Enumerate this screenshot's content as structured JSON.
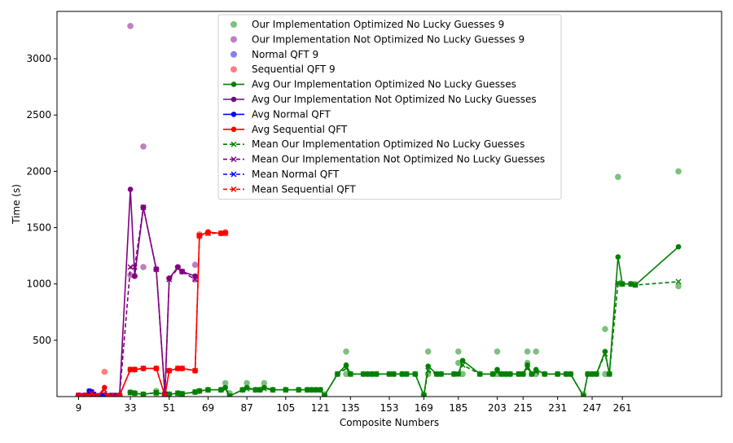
{
  "chart_data": {
    "type": "line",
    "title": "",
    "xlabel": "Composite Numbers",
    "ylabel": "Time (s)",
    "xlim": [
      -1,
      307
    ],
    "ylim": [
      0,
      3420
    ],
    "grid": false,
    "legend_position": "top-center",
    "x_ticks": [
      9,
      33,
      51,
      69,
      87,
      105,
      121,
      135,
      153,
      169,
      185,
      203,
      215,
      231,
      247,
      261
    ],
    "y_ticks": [
      500,
      1000,
      1500,
      2000,
      2500,
      3000
    ],
    "scatter_series": [
      {
        "name": "Our Implementation Optimized No Lucky Guesses 9",
        "color": "#008000",
        "points": [
          [
            33,
            40
          ],
          [
            35,
            30
          ],
          [
            39,
            20
          ],
          [
            45,
            25
          ],
          [
            45,
            50
          ],
          [
            49,
            30
          ],
          [
            51,
            20
          ],
          [
            55,
            30
          ],
          [
            57,
            25
          ],
          [
            63,
            40
          ],
          [
            65,
            50
          ],
          [
            69,
            60
          ],
          [
            75,
            60
          ],
          [
            77,
            120
          ],
          [
            79,
            30
          ],
          [
            85,
            60
          ],
          [
            87,
            120
          ],
          [
            91,
            60
          ],
          [
            93,
            60
          ],
          [
            95,
            120
          ],
          [
            99,
            60
          ],
          [
            105,
            60
          ],
          [
            111,
            60
          ],
          [
            115,
            60
          ],
          [
            117,
            60
          ],
          [
            119,
            60
          ],
          [
            121,
            60
          ],
          [
            123,
            20
          ],
          [
            129,
            200
          ],
          [
            133,
            400
          ],
          [
            133,
            200
          ],
          [
            135,
            200
          ],
          [
            141,
            200
          ],
          [
            143,
            200
          ],
          [
            145,
            200
          ],
          [
            147,
            200
          ],
          [
            153,
            200
          ],
          [
            155,
            200
          ],
          [
            159,
            200
          ],
          [
            161,
            200
          ],
          [
            165,
            200
          ],
          [
            169,
            20
          ],
          [
            171,
            400
          ],
          [
            171,
            200
          ],
          [
            175,
            200
          ],
          [
            177,
            200
          ],
          [
            183,
            200
          ],
          [
            185,
            400
          ],
          [
            185,
            300
          ],
          [
            187,
            200
          ],
          [
            195,
            200
          ],
          [
            201,
            200
          ],
          [
            203,
            400
          ],
          [
            203,
            200
          ],
          [
            205,
            200
          ],
          [
            207,
            200
          ],
          [
            209,
            200
          ],
          [
            213,
            200
          ],
          [
            215,
            200
          ],
          [
            217,
            400
          ],
          [
            217,
            300
          ],
          [
            219,
            200
          ],
          [
            221,
            400
          ],
          [
            221,
            200
          ],
          [
            225,
            200
          ],
          [
            231,
            200
          ],
          [
            235,
            200
          ],
          [
            237,
            200
          ],
          [
            243,
            20
          ],
          [
            245,
            200
          ],
          [
            247,
            200
          ],
          [
            249,
            200
          ],
          [
            253,
            600
          ],
          [
            253,
            200
          ],
          [
            255,
            200
          ],
          [
            259,
            1950
          ],
          [
            259,
            1000
          ],
          [
            261,
            1000
          ],
          [
            265,
            1000
          ],
          [
            267,
            1000
          ],
          [
            287,
            2000
          ],
          [
            287,
            980
          ]
        ]
      },
      {
        "name": "Our Implementation Not Optimized No Lucky Guesses 9",
        "color": "#800080",
        "points": [
          [
            9,
            10
          ],
          [
            10,
            5
          ],
          [
            12,
            10
          ],
          [
            14,
            5
          ],
          [
            15,
            20
          ],
          [
            16,
            10
          ],
          [
            18,
            5
          ],
          [
            20,
            5
          ],
          [
            21,
            10
          ],
          [
            22,
            5
          ],
          [
            24,
            10
          ],
          [
            25,
            5
          ],
          [
            26,
            10
          ],
          [
            27,
            5
          ],
          [
            28,
            10
          ],
          [
            33,
            3290
          ],
          [
            33,
            1080
          ],
          [
            35,
            1070
          ],
          [
            39,
            2220
          ],
          [
            39,
            1150
          ],
          [
            39,
            1680
          ],
          [
            45,
            1130
          ],
          [
            49,
            20
          ],
          [
            51,
            1050
          ],
          [
            55,
            1150
          ],
          [
            57,
            1110
          ],
          [
            63,
            1170
          ],
          [
            63,
            1040
          ]
        ]
      },
      {
        "name": "Normal QFT 9",
        "color": "#0000ff",
        "points": [
          [
            9,
            10
          ],
          [
            10,
            5
          ],
          [
            12,
            10
          ],
          [
            14,
            5
          ],
          [
            15,
            40
          ],
          [
            16,
            10
          ],
          [
            18,
            5
          ],
          [
            20,
            5
          ],
          [
            21,
            10
          ],
          [
            22,
            5
          ]
        ]
      },
      {
        "name": "Sequential QFT 9",
        "color": "#ff0000",
        "points": [
          [
            9,
            10
          ],
          [
            10,
            5
          ],
          [
            12,
            10
          ],
          [
            14,
            5
          ],
          [
            15,
            40
          ],
          [
            16,
            10
          ],
          [
            18,
            5
          ],
          [
            21,
            220
          ],
          [
            22,
            5
          ],
          [
            24,
            5
          ],
          [
            28,
            10
          ],
          [
            33,
            240
          ],
          [
            35,
            240
          ],
          [
            39,
            250
          ],
          [
            45,
            250
          ],
          [
            49,
            10
          ],
          [
            51,
            230
          ],
          [
            55,
            250
          ],
          [
            57,
            250
          ],
          [
            63,
            230
          ],
          [
            65,
            1440
          ],
          [
            65,
            1420
          ],
          [
            69,
            1450
          ],
          [
            69,
            1460
          ],
          [
            75,
            1450
          ],
          [
            77,
            1450
          ],
          [
            77,
            1460
          ]
        ]
      }
    ],
    "series": [
      {
        "name": "Avg Our Implementation Optimized No Lucky Guesses",
        "color": "#008000",
        "style": "line-dot",
        "x": [
          33,
          35,
          39,
          45,
          49,
          51,
          55,
          57,
          63,
          65,
          69,
          75,
          77,
          79,
          85,
          87,
          91,
          93,
          95,
          99,
          105,
          111,
          115,
          117,
          119,
          121,
          123,
          129,
          133,
          135,
          141,
          143,
          145,
          147,
          153,
          155,
          159,
          161,
          165,
          169,
          171,
          175,
          177,
          183,
          185,
          187,
          195,
          201,
          203,
          205,
          207,
          209,
          213,
          215,
          217,
          219,
          221,
          225,
          231,
          235,
          237,
          243,
          245,
          247,
          249,
          253,
          255,
          259,
          261,
          265,
          267,
          287
        ],
        "y": [
          35,
          30,
          20,
          35,
          20,
          20,
          30,
          25,
          40,
          50,
          60,
          60,
          80,
          5,
          60,
          80,
          60,
          60,
          80,
          60,
          60,
          60,
          60,
          60,
          60,
          60,
          10,
          200,
          280,
          200,
          200,
          200,
          200,
          200,
          200,
          200,
          200,
          200,
          200,
          10,
          270,
          200,
          200,
          200,
          200,
          320,
          200,
          200,
          240,
          200,
          200,
          200,
          200,
          200,
          280,
          200,
          240,
          200,
          200,
          200,
          200,
          5,
          200,
          200,
          200,
          400,
          200,
          1240,
          1000,
          1000,
          990,
          1330
        ]
      },
      {
        "name": "Avg Our Implementation Not Optimized No Lucky Guesses",
        "color": "#800080",
        "style": "line-dot",
        "x": [
          9,
          10,
          12,
          14,
          15,
          16,
          18,
          20,
          21,
          22,
          24,
          25,
          26,
          27,
          28,
          33,
          35,
          39,
          45,
          49,
          51,
          55,
          57,
          63
        ],
        "y": [
          10,
          5,
          10,
          5,
          20,
          10,
          5,
          5,
          10,
          5,
          10,
          5,
          10,
          5,
          10,
          1840,
          1070,
          1680,
          1130,
          20,
          1050,
          1150,
          1110,
          1070
        ]
      },
      {
        "name": "Avg Normal QFT",
        "color": "#0000ff",
        "style": "line-dot",
        "x": [
          9,
          10,
          12,
          14,
          15,
          16,
          18,
          20,
          21,
          22
        ],
        "y": [
          10,
          5,
          10,
          50,
          40,
          20,
          5,
          5,
          10,
          5
        ]
      },
      {
        "name": "Avg Sequential QFT",
        "color": "#ff0000",
        "style": "line-dot",
        "x": [
          9,
          10,
          12,
          14,
          15,
          16,
          18,
          21,
          22,
          24,
          28,
          33,
          35,
          39,
          45,
          49,
          51,
          55,
          57,
          63,
          65,
          69,
          75,
          77
        ],
        "y": [
          10,
          5,
          10,
          5,
          30,
          10,
          5,
          80,
          5,
          5,
          10,
          240,
          240,
          250,
          250,
          10,
          230,
          250,
          250,
          230,
          1430,
          1460,
          1450,
          1455
        ]
      },
      {
        "name": "Mean Our Implementation Optimized No Lucky Guesses",
        "color": "#008000",
        "style": "dash-x",
        "x": [
          33,
          35,
          39,
          45,
          49,
          51,
          55,
          57,
          63,
          65,
          69,
          75,
          77,
          79,
          85,
          87,
          91,
          93,
          95,
          99,
          105,
          111,
          115,
          117,
          119,
          121,
          123,
          129,
          133,
          135,
          141,
          143,
          145,
          147,
          153,
          155,
          159,
          161,
          165,
          169,
          171,
          175,
          177,
          183,
          185,
          187,
          195,
          201,
          203,
          205,
          207,
          209,
          213,
          215,
          217,
          219,
          221,
          225,
          231,
          235,
          237,
          243,
          245,
          247,
          249,
          253,
          255,
          259,
          261,
          265,
          267,
          287
        ],
        "y": [
          35,
          30,
          20,
          35,
          20,
          20,
          30,
          25,
          40,
          50,
          60,
          60,
          70,
          5,
          60,
          70,
          60,
          60,
          70,
          60,
          60,
          60,
          60,
          60,
          60,
          60,
          10,
          200,
          250,
          200,
          200,
          200,
          200,
          200,
          200,
          200,
          200,
          200,
          200,
          10,
          230,
          200,
          200,
          200,
          200,
          280,
          200,
          200,
          220,
          200,
          200,
          200,
          200,
          200,
          250,
          200,
          220,
          200,
          200,
          200,
          200,
          5,
          200,
          200,
          200,
          380,
          200,
          1010,
          1000,
          1000,
          990,
          1020
        ]
      },
      {
        "name": "Mean Our Implementation Not Optimized No Lucky Guesses",
        "color": "#800080",
        "style": "dash-x",
        "x": [
          9,
          10,
          12,
          14,
          15,
          16,
          18,
          20,
          21,
          22,
          24,
          25,
          26,
          27,
          28,
          33,
          35,
          39,
          45,
          49,
          51,
          55,
          57,
          63
        ],
        "y": [
          10,
          5,
          10,
          5,
          20,
          10,
          5,
          5,
          10,
          5,
          10,
          5,
          10,
          5,
          10,
          1150,
          1150,
          1680,
          1130,
          20,
          1040,
          1140,
          1110,
          1040
        ]
      },
      {
        "name": "Mean Normal QFT",
        "color": "#0000ff",
        "style": "dash-x",
        "x": [
          9,
          10,
          12,
          14,
          15,
          16,
          18,
          20,
          21,
          22
        ],
        "y": [
          10,
          5,
          10,
          45,
          40,
          20,
          5,
          5,
          10,
          5
        ]
      },
      {
        "name": "Mean Sequential QFT",
        "color": "#ff0000",
        "style": "dash-x",
        "x": [
          9,
          10,
          12,
          14,
          15,
          16,
          18,
          21,
          22,
          24,
          28,
          33,
          35,
          39,
          45,
          49,
          51,
          55,
          57,
          63,
          65,
          69,
          75,
          77
        ],
        "y": [
          10,
          5,
          10,
          5,
          30,
          10,
          5,
          60,
          5,
          5,
          10,
          240,
          240,
          250,
          250,
          10,
          230,
          250,
          250,
          230,
          1430,
          1450,
          1450,
          1450
        ]
      }
    ]
  }
}
